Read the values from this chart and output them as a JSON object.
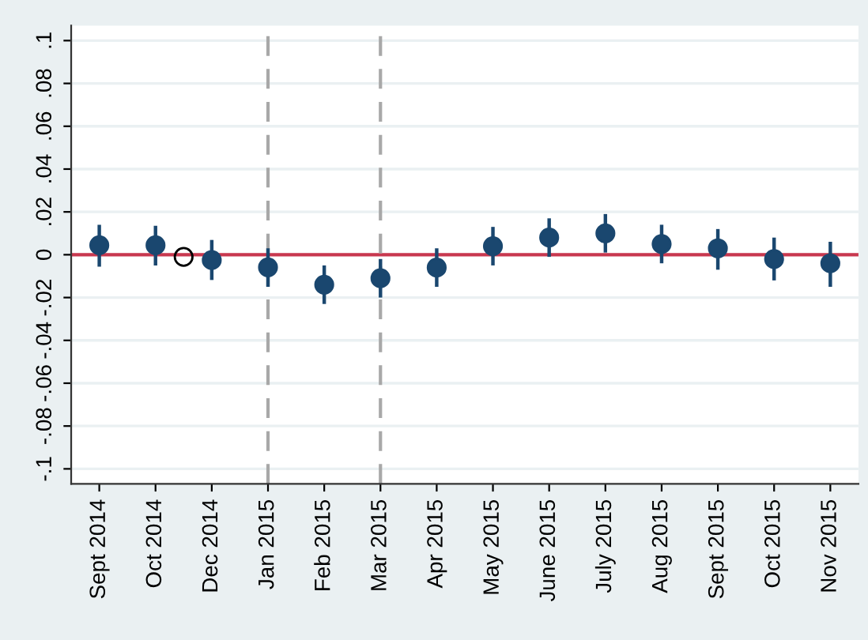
{
  "chart_data": {
    "type": "scatter",
    "categories": [
      "Sept 2014",
      null,
      "Oct 2014",
      null,
      "Dec 2014",
      null,
      "Jan 2015",
      null,
      "Feb 2015",
      null,
      "Mar 2015",
      null,
      "Apr 2015",
      null,
      "May 2015",
      null,
      "June 2015",
      null,
      "July 2015",
      null,
      "Aug 2015",
      null,
      "Sept 2015",
      null,
      "Oct 2015",
      null,
      "Nov 2015"
    ],
    "series": [
      {
        "color": "#1a476f",
        "values": [
          0.0044,
          null,
          0.0044,
          null,
          -0.0025,
          null,
          -0.0059,
          null,
          -0.014,
          null,
          -0.011,
          null,
          -0.006,
          null,
          0.004,
          null,
          0.008,
          null,
          0.01,
          null,
          0.005,
          null,
          0.003,
          null,
          -0.002,
          null,
          -0.004
        ],
        "errors": [
          [
            -0.0056,
            0.014
          ],
          null,
          [
            -0.005,
            0.0135
          ],
          null,
          [
            -0.0118,
            0.0069
          ],
          null,
          [
            -0.015,
            0.003
          ],
          null,
          [
            -0.023,
            -0.005
          ],
          null,
          [
            -0.02,
            -0.002
          ],
          null,
          [
            -0.015,
            0.003
          ],
          null,
          [
            -0.005,
            0.013
          ],
          null,
          [
            -0.001,
            0.017
          ],
          null,
          [
            0.001,
            0.019
          ],
          null,
          [
            -0.004,
            0.014
          ],
          null,
          [
            -0.007,
            0.012
          ],
          null,
          [
            -0.012,
            0.008
          ],
          null,
          [
            -0.015,
            0.006
          ]
        ]
      },
      {
        "color": "#000000",
        "values": [
          null,
          null,
          null,
          -0.001,
          null,
          null,
          null,
          null,
          null,
          null,
          null,
          null,
          null,
          null,
          null,
          null,
          null,
          null,
          null,
          null,
          null,
          null,
          null,
          null,
          null,
          null,
          null
        ]
      }
    ],
    "ylim": [
      -0.107,
      0.107
    ],
    "yticks": [
      {
        "value": -0.1,
        "label": "-.1"
      },
      {
        "value": -0.08,
        "label": "-.08"
      },
      {
        "value": -0.06,
        "label": "-.06"
      },
      {
        "value": -0.04,
        "label": "-.04"
      },
      {
        "value": -0.02,
        "label": "-.02"
      },
      0,
      {
        "value": 0.02,
        "label": ".02"
      },
      {
        "value": 0.04,
        "label": ".04"
      },
      {
        "value": 0.06,
        "label": ".06"
      },
      {
        "value": 0.08,
        "label": ".08"
      },
      {
        "value": 0.1,
        "label": ".1"
      }
    ],
    "ref_lines": [
      {
        "axis": "y",
        "value": 0,
        "color": "#c8384f",
        "line_style": "solid"
      },
      {
        "axis": "x",
        "value": "Jan 2015",
        "color": "#a8a8a8",
        "line_style": "dashed"
      },
      {
        "axis": "x",
        "value": "Mar 2015",
        "color": "#a8a8a8",
        "line_style": "dashed"
      }
    ],
    "grid": "y",
    "legend": false,
    "marker": "circle"
  }
}
